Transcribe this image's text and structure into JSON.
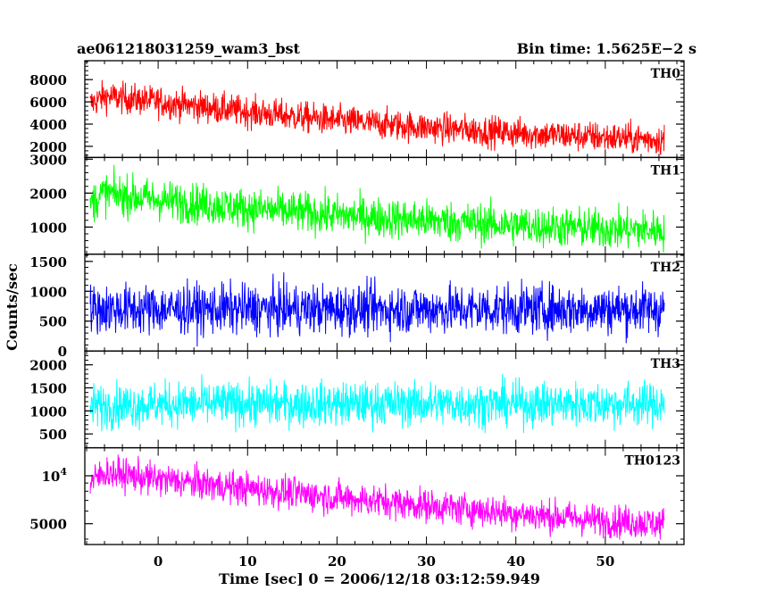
{
  "header": {
    "left_title": "ae061218031259_wam3_bst",
    "right_title": "Bin time: 1.5625E−2 s"
  },
  "chart_data": {
    "type": "line",
    "xlabel": "Time [sec] 0 = 2006/12/18 03:12:59.949",
    "ylabel": "Counts/sec",
    "xlim": [
      -8.2,
      58.8
    ],
    "x_ticks": [
      0,
      10,
      20,
      30,
      40,
      50
    ],
    "x_tick_labels": [
      "0",
      "10",
      "20",
      "30",
      "40",
      "50"
    ],
    "data_x_range": [
      -7.6,
      56.6
    ],
    "grid": false,
    "panels": [
      {
        "name": "TH0",
        "color": "#ff0000",
        "ylim": [
          1000,
          9700
        ],
        "scale": "linear",
        "y_ticks": [
          2000,
          4000,
          6000,
          8000
        ],
        "y_tick_labels": [
          "2000",
          "4000",
          "6000",
          "8000"
        ],
        "trend": {
          "x": [
            -7.6,
            -6,
            0,
            10,
            20,
            30,
            40,
            50,
            56.6
          ],
          "mean": [
            5800,
            6500,
            6000,
            5100,
            4300,
            3700,
            3200,
            2800,
            2600
          ]
        },
        "spread": 1400
      },
      {
        "name": "TH1",
        "color": "#00ff00",
        "ylim": [
          200,
          3050
        ],
        "scale": "linear",
        "y_ticks": [
          1000,
          2000,
          3000
        ],
        "y_tick_labels": [
          "1000",
          "2000",
          "3000"
        ],
        "trend": {
          "x": [
            -7.6,
            -6,
            0,
            10,
            20,
            30,
            40,
            50,
            56.6
          ],
          "mean": [
            1700,
            2000,
            1800,
            1550,
            1350,
            1200,
            1050,
            950,
            900
          ]
        },
        "spread": 600
      },
      {
        "name": "TH2",
        "color": "#0000ff",
        "ylim": [
          0,
          1620
        ],
        "scale": "linear",
        "y_ticks": [
          0,
          500,
          1000,
          1500
        ],
        "y_tick_labels": [
          "0",
          "500",
          "1000",
          "1500"
        ],
        "trend": {
          "x": [
            -7.6,
            0,
            20,
            40,
            56.6
          ],
          "mean": [
            700,
            700,
            700,
            700,
            700
          ]
        },
        "spread": 420
      },
      {
        "name": "TH3",
        "color": "#00ffff",
        "ylim": [
          200,
          2300
        ],
        "scale": "linear",
        "y_ticks": [
          500,
          1000,
          1500,
          2000
        ],
        "y_tick_labels": [
          "500",
          "1000",
          "1500",
          "2000"
        ],
        "trend": {
          "x": [
            -7.6,
            0,
            20,
            40,
            56.6
          ],
          "mean": [
            1100,
            1150,
            1150,
            1150,
            1150
          ]
        },
        "spread": 480
      },
      {
        "name": "TH0123",
        "color": "#ff00ff",
        "ylim": [
          3700,
          15000
        ],
        "scale": "log",
        "y_ticks": [
          5000,
          10000
        ],
        "y_tick_labels": [
          "5000",
          "10⁴"
        ],
        "trend": {
          "x": [
            -7.6,
            -6,
            0,
            10,
            20,
            30,
            40,
            50,
            56.6
          ],
          "mean": [
            9000,
            10500,
            9500,
            8300,
            7300,
            6500,
            5800,
            5200,
            5000
          ]
        },
        "spread": 0.12
      }
    ]
  }
}
